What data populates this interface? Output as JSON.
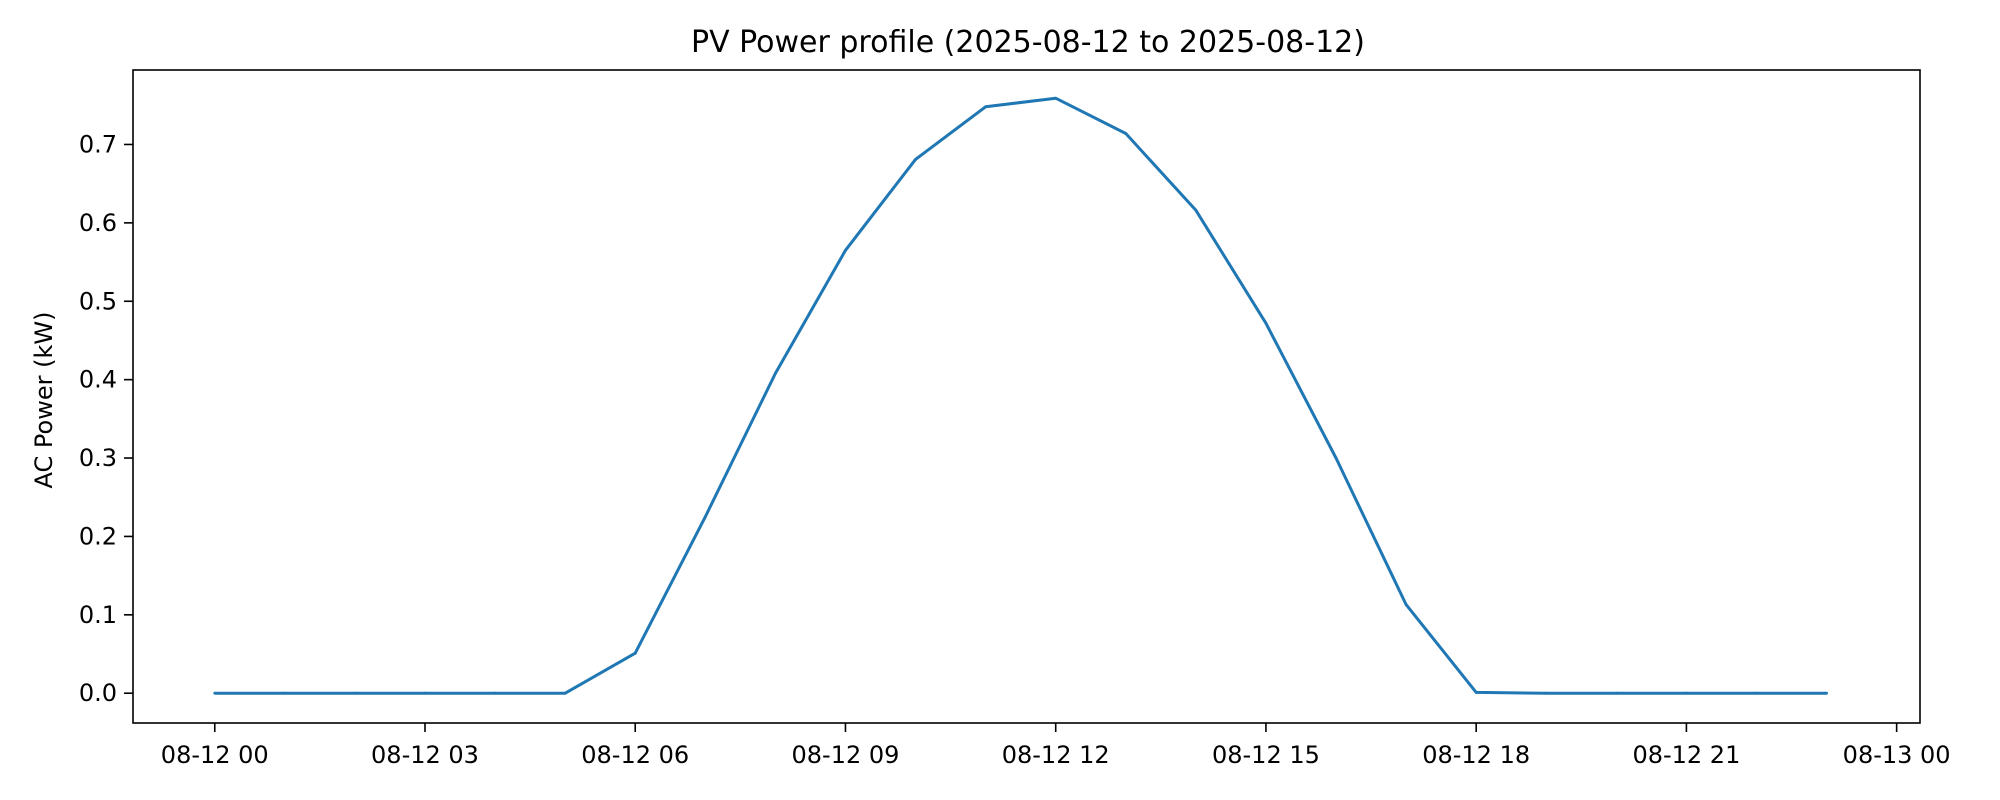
{
  "chart_data": {
    "type": "line",
    "title": "PV Power profile (2025-08-12 to 2025-08-12)",
    "xlabel": "",
    "ylabel": "AC Power (kW)",
    "x_ticks": [
      {
        "value": "2025-08-12 00:00",
        "label": "08-12 00"
      },
      {
        "value": "2025-08-12 03:00",
        "label": "08-12 03"
      },
      {
        "value": "2025-08-12 06:00",
        "label": "08-12 06"
      },
      {
        "value": "2025-08-12 09:00",
        "label": "08-12 09"
      },
      {
        "value": "2025-08-12 12:00",
        "label": "08-12 12"
      },
      {
        "value": "2025-08-12 15:00",
        "label": "08-12 15"
      },
      {
        "value": "2025-08-12 18:00",
        "label": "08-12 18"
      },
      {
        "value": "2025-08-12 21:00",
        "label": "08-12 21"
      },
      {
        "value": "2025-08-13 00:00",
        "label": "08-13 00"
      }
    ],
    "y_ticks": [
      {
        "value": 0.0,
        "label": "0.0"
      },
      {
        "value": 0.1,
        "label": "0.1"
      },
      {
        "value": 0.2,
        "label": "0.2"
      },
      {
        "value": 0.3,
        "label": "0.3"
      },
      {
        "value": 0.4,
        "label": "0.4"
      },
      {
        "value": 0.5,
        "label": "0.5"
      },
      {
        "value": 0.6,
        "label": "0.6"
      },
      {
        "value": 0.7,
        "label": "0.7"
      }
    ],
    "xlim": [
      "2025-08-11 22:50",
      "2025-08-13 00:20"
    ],
    "ylim": [
      -0.038,
      0.795
    ],
    "grid": false,
    "color": "#1f77b4",
    "series": [
      {
        "x": [
          "2025-08-12 00:00",
          "2025-08-12 01:00",
          "2025-08-12 02:00",
          "2025-08-12 03:00",
          "2025-08-12 04:00",
          "2025-08-12 05:00",
          "2025-08-12 06:00",
          "2025-08-12 07:00",
          "2025-08-12 08:00",
          "2025-08-12 09:00",
          "2025-08-12 10:00",
          "2025-08-12 11:00",
          "2025-08-12 12:00",
          "2025-08-12 13:00",
          "2025-08-12 14:00",
          "2025-08-12 15:00",
          "2025-08-12 16:00",
          "2025-08-12 17:00",
          "2025-08-12 18:00",
          "2025-08-12 19:00",
          "2025-08-12 20:00",
          "2025-08-12 21:00",
          "2025-08-12 22:00",
          "2025-08-12 23:00"
        ],
        "values": [
          0.0,
          0.0,
          0.0,
          0.0,
          0.0,
          0.0,
          0.051,
          0.225,
          0.408,
          0.565,
          0.681,
          0.748,
          0.759,
          0.714,
          0.616,
          0.472,
          0.3,
          0.113,
          0.001,
          0.0,
          0.0,
          0.0,
          0.0,
          0.0
        ]
      }
    ]
  }
}
